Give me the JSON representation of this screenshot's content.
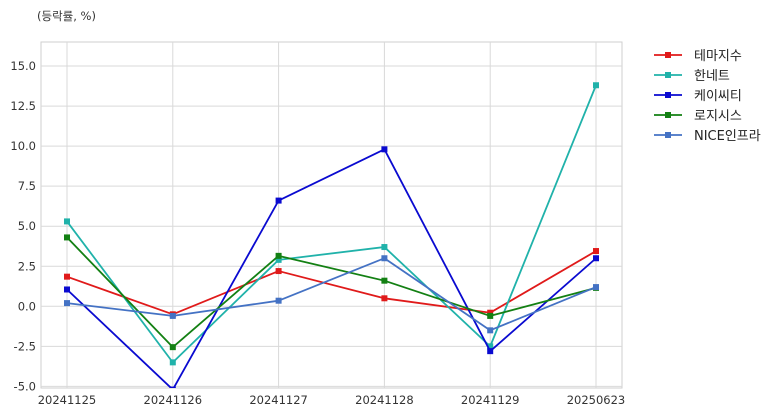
{
  "chart_data": {
    "type": "line",
    "unit_label": "(등락률, %)",
    "x": [
      "20241125",
      "20241126",
      "20241127",
      "20241128",
      "20241129",
      "20250623"
    ],
    "ylim": [
      -5.1,
      16.5
    ],
    "yticks": [
      -5.0,
      -2.5,
      0.0,
      2.5,
      5.0,
      7.5,
      10.0,
      12.5,
      15.0
    ],
    "ytick_labels": [
      "-5.0",
      "-2.5",
      "0.0",
      "2.5",
      "5.0",
      "7.5",
      "10.0",
      "12.5",
      "15.0"
    ],
    "grid": true,
    "legend_position": "outside-top-right",
    "series": [
      {
        "name": "테마지수",
        "color": "#e01a1a",
        "values": [
          1.85,
          -0.5,
          2.2,
          0.5,
          -0.4,
          3.45
        ]
      },
      {
        "name": "한네트",
        "color": "#20b2aa",
        "values": [
          5.3,
          -3.5,
          2.9,
          3.7,
          -2.5,
          13.8
        ]
      },
      {
        "name": "케이씨티",
        "color": "#0a0ad0",
        "values": [
          1.05,
          -5.2,
          6.6,
          9.8,
          -2.8,
          3.0
        ]
      },
      {
        "name": "로지시스",
        "color": "#138013",
        "values": [
          4.3,
          -2.55,
          3.15,
          1.6,
          -0.6,
          1.15
        ]
      },
      {
        "name": "NICE인프라",
        "color": "#4472c4",
        "values": [
          0.2,
          -0.6,
          0.35,
          3.0,
          -1.5,
          1.2
        ]
      }
    ]
  }
}
